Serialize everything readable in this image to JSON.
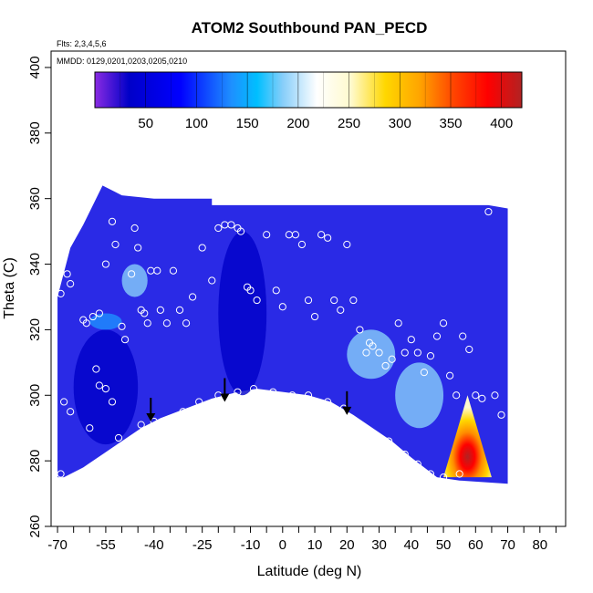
{
  "chart_data": {
    "type": "heatmap",
    "title": "ATOM2 Southbound PAN_PECD",
    "flights_note": "Flts: 2,3,4,5,6",
    "dates_note": "MMDD: 0129,0201,0203,0205,0210",
    "xlabel": "Latitude (deg N)",
    "ylabel": "Theta (C)",
    "xlim": [
      -72,
      88
    ],
    "ylim": [
      260,
      405
    ],
    "x_ticks": [
      -70,
      -55,
      -40,
      -25,
      -10,
      0,
      10,
      20,
      30,
      40,
      50,
      60,
      70,
      80
    ],
    "x_minor_ticks": [
      -65,
      -60,
      -50,
      -45,
      -35,
      -30,
      -20,
      -15,
      -5,
      5,
      15,
      25,
      35,
      45,
      55,
      65,
      75,
      85
    ],
    "y_ticks": [
      260,
      280,
      300,
      320,
      340,
      360,
      380,
      400
    ],
    "colorbar": {
      "range": [
        0,
        420
      ],
      "ticks": [
        50,
        100,
        150,
        200,
        250,
        300,
        350,
        400
      ],
      "colors": [
        "#8a2be2",
        "#0000c8",
        "#0000ff",
        "#1e90ff",
        "#00bfff",
        "#87cefa",
        "#ffffff",
        "#fffacd",
        "#ffd700",
        "#ffa500",
        "#ff4500",
        "#ff0000",
        "#b22222"
      ]
    },
    "grid": false,
    "legend": "none",
    "field_regions": [
      {
        "lat": [
          -65,
          -45
        ],
        "theta": [
          285,
          320
        ],
        "value": 30
      },
      {
        "lat": [
          -20,
          -5
        ],
        "theta": [
          300,
          350
        ],
        "value": 20
      },
      {
        "lat": [
          20,
          35
        ],
        "theta": [
          305,
          320
        ],
        "value": 190
      },
      {
        "lat": [
          35,
          50
        ],
        "theta": [
          290,
          310
        ],
        "value": 170
      },
      {
        "lat": [
          50,
          65
        ],
        "theta": [
          275,
          300
        ],
        "value": 380
      },
      {
        "lat": [
          -50,
          -42
        ],
        "theta": [
          330,
          340
        ],
        "value": 170
      },
      {
        "lat": [
          -60,
          -50
        ],
        "theta": [
          320,
          325
        ],
        "value": 120
      }
    ],
    "arrows": [
      {
        "lat": -41,
        "theta": 292
      },
      {
        "lat": -18,
        "theta": 298
      },
      {
        "lat": 20,
        "theta": 294
      }
    ],
    "samples": [
      {
        "lat": -69,
        "theta": 331
      },
      {
        "lat": -67,
        "theta": 337
      },
      {
        "lat": -66,
        "theta": 334
      },
      {
        "lat": -62,
        "theta": 323
      },
      {
        "lat": -61,
        "theta": 322
      },
      {
        "lat": -59,
        "theta": 324
      },
      {
        "lat": -57,
        "theta": 325
      },
      {
        "lat": -55,
        "theta": 340
      },
      {
        "lat": -53,
        "theta": 353
      },
      {
        "lat": -52,
        "theta": 346
      },
      {
        "lat": -50,
        "theta": 321
      },
      {
        "lat": -49,
        "theta": 317
      },
      {
        "lat": -47,
        "theta": 337
      },
      {
        "lat": -46,
        "theta": 351
      },
      {
        "lat": -45,
        "theta": 345
      },
      {
        "lat": -44,
        "theta": 326
      },
      {
        "lat": -43,
        "theta": 325
      },
      {
        "lat": -42,
        "theta": 322
      },
      {
        "lat": -41,
        "theta": 338
      },
      {
        "lat": -39,
        "theta": 338
      },
      {
        "lat": -38,
        "theta": 326
      },
      {
        "lat": -36,
        "theta": 322
      },
      {
        "lat": -34,
        "theta": 338
      },
      {
        "lat": -32,
        "theta": 326
      },
      {
        "lat": -30,
        "theta": 322
      },
      {
        "lat": -28,
        "theta": 330
      },
      {
        "lat": -25,
        "theta": 345
      },
      {
        "lat": -22,
        "theta": 335
      },
      {
        "lat": -20,
        "theta": 351
      },
      {
        "lat": -18,
        "theta": 352
      },
      {
        "lat": -16,
        "theta": 352
      },
      {
        "lat": -14,
        "theta": 351
      },
      {
        "lat": -13,
        "theta": 350
      },
      {
        "lat": -11,
        "theta": 333
      },
      {
        "lat": -10,
        "theta": 332
      },
      {
        "lat": -8,
        "theta": 329
      },
      {
        "lat": -5,
        "theta": 349
      },
      {
        "lat": -2,
        "theta": 332
      },
      {
        "lat": 0,
        "theta": 327
      },
      {
        "lat": 2,
        "theta": 349
      },
      {
        "lat": 4,
        "theta": 349
      },
      {
        "lat": 6,
        "theta": 346
      },
      {
        "lat": 8,
        "theta": 329
      },
      {
        "lat": 10,
        "theta": 324
      },
      {
        "lat": 12,
        "theta": 349
      },
      {
        "lat": 14,
        "theta": 348
      },
      {
        "lat": 16,
        "theta": 329
      },
      {
        "lat": 18,
        "theta": 326
      },
      {
        "lat": 20,
        "theta": 346
      },
      {
        "lat": 22,
        "theta": 329
      },
      {
        "lat": 24,
        "theta": 320
      },
      {
        "lat": 26,
        "theta": 313
      },
      {
        "lat": 27,
        "theta": 316
      },
      {
        "lat": 28,
        "theta": 315
      },
      {
        "lat": 30,
        "theta": 313
      },
      {
        "lat": 32,
        "theta": 309
      },
      {
        "lat": 34,
        "theta": 311
      },
      {
        "lat": 36,
        "theta": 322
      },
      {
        "lat": 38,
        "theta": 313
      },
      {
        "lat": 40,
        "theta": 317
      },
      {
        "lat": 42,
        "theta": 313
      },
      {
        "lat": 44,
        "theta": 307
      },
      {
        "lat": 46,
        "theta": 312
      },
      {
        "lat": 48,
        "theta": 318
      },
      {
        "lat": 50,
        "theta": 322
      },
      {
        "lat": 52,
        "theta": 306
      },
      {
        "lat": 54,
        "theta": 300
      },
      {
        "lat": 56,
        "theta": 318
      },
      {
        "lat": 58,
        "theta": 314
      },
      {
        "lat": 60,
        "theta": 300
      },
      {
        "lat": 62,
        "theta": 299
      },
      {
        "lat": 64,
        "theta": 356
      },
      {
        "lat": 66,
        "theta": 300
      },
      {
        "lat": 68,
        "theta": 294
      },
      {
        "lat": -68,
        "theta": 298
      },
      {
        "lat": -66,
        "theta": 295
      },
      {
        "lat": -60,
        "theta": 290
      },
      {
        "lat": -58,
        "theta": 308
      },
      {
        "lat": -57,
        "theta": 303
      },
      {
        "lat": -55,
        "theta": 302
      },
      {
        "lat": -53,
        "theta": 298
      },
      {
        "lat": -51,
        "theta": 287
      },
      {
        "lat": -48,
        "theta": 281
      },
      {
        "lat": -44,
        "theta": 291
      },
      {
        "lat": -40,
        "theta": 292
      },
      {
        "lat": -36,
        "theta": 291
      },
      {
        "lat": -31,
        "theta": 295
      },
      {
        "lat": -26,
        "theta": 298
      },
      {
        "lat": -20,
        "theta": 300
      },
      {
        "lat": -14,
        "theta": 301
      },
      {
        "lat": -9,
        "theta": 302
      },
      {
        "lat": -3,
        "theta": 301
      },
      {
        "lat": 3,
        "theta": 300
      },
      {
        "lat": 8,
        "theta": 300
      },
      {
        "lat": 14,
        "theta": 298
      },
      {
        "lat": 19,
        "theta": 296
      },
      {
        "lat": 24,
        "theta": 291
      },
      {
        "lat": 28,
        "theta": 288
      },
      {
        "lat": 33,
        "theta": 286
      },
      {
        "lat": 38,
        "theta": 282
      },
      {
        "lat": 42,
        "theta": 279
      },
      {
        "lat": 46,
        "theta": 276
      },
      {
        "lat": 50,
        "theta": 275
      },
      {
        "lat": 55,
        "theta": 276
      },
      {
        "lat": -69,
        "theta": 276
      },
      {
        "lat": -47,
        "theta": 283
      }
    ]
  }
}
